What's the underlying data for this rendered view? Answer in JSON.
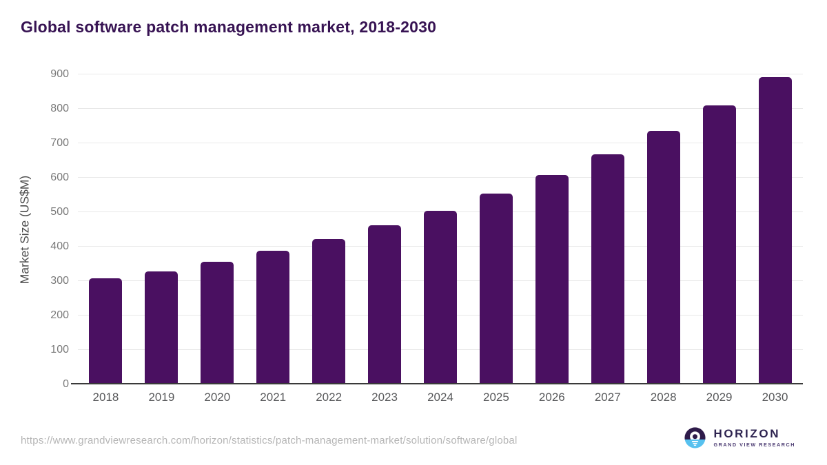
{
  "page": {
    "title": "Global software patch management market, 2018-2030"
  },
  "chart_data": {
    "type": "bar",
    "title": "Global software patch management market, 2018-2030",
    "categories": [
      "2018",
      "2019",
      "2020",
      "2021",
      "2022",
      "2023",
      "2024",
      "2025",
      "2026",
      "2027",
      "2028",
      "2029",
      "2030"
    ],
    "values": [
      308,
      328,
      356,
      388,
      422,
      462,
      505,
      555,
      608,
      668,
      737,
      810,
      893
    ],
    "xlabel": "",
    "ylabel": "Market Size (US$M)",
    "ylim": [
      0,
      900
    ],
    "yticks": [
      0,
      100,
      200,
      300,
      400,
      500,
      600,
      700,
      800,
      900
    ],
    "grid": true,
    "legend": false,
    "bar_color": "#4a1061"
  },
  "footer": {
    "source_url": "https://www.grandviewresearch.com/horizon/statistics/patch-management-market/solution/software/global",
    "logo": {
      "name": "HORIZON",
      "subtitle": "GRAND VIEW RESEARCH",
      "icon": "horizon-sun-icon",
      "icon_purple": "#2e1b4a",
      "icon_blue": "#57c1ef"
    }
  },
  "colors": {
    "title": "#371353",
    "bar": "#4a1061",
    "gridline": "#e8e8e8",
    "axis_line": "#3a3a3a",
    "y_tick_label": "#7a7a7a",
    "x_label": "#58595b",
    "y_axis_label": "#4c4c4c",
    "url": "#b5b5b5"
  }
}
